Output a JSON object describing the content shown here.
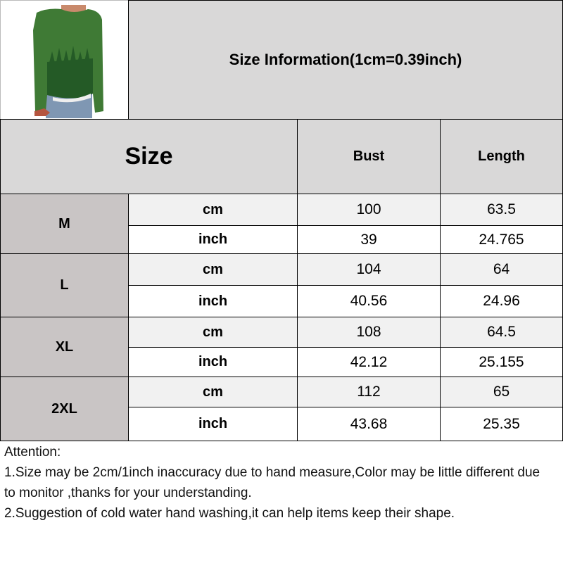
{
  "title": "Size Information(1cm=0.39inch)",
  "header": {
    "size": "Size",
    "bust": "Bust",
    "length": "Length"
  },
  "rows": [
    {
      "size": "M",
      "cm": {
        "unit": "cm",
        "bust": "100",
        "length": "63.5"
      },
      "inch": {
        "unit": "inch",
        "bust": "39",
        "length": "24.765"
      }
    },
    {
      "size": "L",
      "cm": {
        "unit": "cm",
        "bust": "104",
        "length": "64"
      },
      "inch": {
        "unit": "inch",
        "bust": "40.56",
        "length": "24.96"
      }
    },
    {
      "size": "XL",
      "cm": {
        "unit": "cm",
        "bust": "108",
        "length": "64.5"
      },
      "inch": {
        "unit": "inch",
        "bust": "42.12",
        "length": "25.155"
      }
    },
    {
      "size": "2XL",
      "cm": {
        "unit": "cm",
        "bust": "112",
        "length": "65"
      },
      "inch": {
        "unit": "inch",
        "bust": "43.68",
        "length": "25.35"
      }
    }
  ],
  "notes": {
    "heading": "Attention:",
    "line1": "1.Size may be 2cm/1inch inaccuracy due to hand measure,Color may be little different due to monitor ,thanks for your understanding.",
    "line2": "2.Suggestion of cold water hand washing,it can help items keep their shape."
  },
  "colors": {
    "sweater": "#3f7a35"
  }
}
